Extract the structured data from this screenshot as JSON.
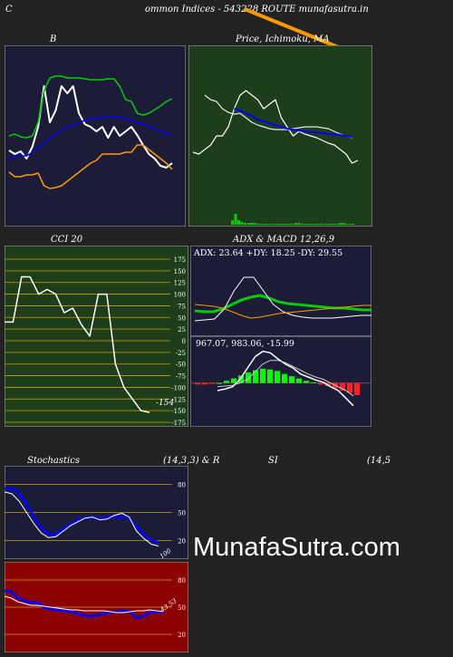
{
  "header": {
    "left": "C",
    "title": "ommon  Indices - 543228  ROUTE munafasutra.in",
    "right": ""
  },
  "panels": {
    "bollinger": {
      "label": "B"
    },
    "price": {
      "label": "Price,  Ichimoku,  MA"
    },
    "cci": {
      "label": "CCI 20",
      "last": "-154"
    },
    "adx": {
      "label": "ADX  & MACD 12,26,9",
      "values": "ADX: 23.64  +DY: 18.25 -DY: 29.55"
    },
    "macd": {
      "values": "967.07,  983.06,  -15.99"
    },
    "stoch": {
      "label": "Stochastics",
      "params": "(14,3,3) & R",
      "last": "100"
    },
    "rsi": {
      "label": "SI",
      "params": "(14,5",
      "last": "43.53"
    }
  },
  "watermark": "MunafaSutra.com",
  "colors": {
    "page_bg": "#222222",
    "navy_panel": "#1c1c38",
    "green_panel": "#1e3d1a",
    "red_panel": "#8b0000",
    "orange": "#ff9900",
    "blue": "#0000ff",
    "green_line": "#00cc00",
    "white": "#ffffff"
  },
  "chart_data": [
    {
      "type": "line",
      "name": "bollinger",
      "series": [
        {
          "color": "#ffffff",
          "values": [
            166,
            170,
            167,
            175,
            162,
            140,
            95,
            135,
            122,
            95,
            103,
            95,
            125,
            137,
            140,
            145,
            140,
            152,
            140,
            150,
            145,
            140,
            149,
            160,
            170,
            175,
            183,
            185,
            180
          ]
        },
        {
          "color": "#00cc00",
          "values": [
            150,
            148,
            151,
            152,
            150,
            135,
            100,
            86,
            84,
            84,
            86,
            86,
            86,
            87,
            88,
            88,
            88,
            87,
            87,
            95,
            110,
            112,
            125,
            127,
            125,
            121,
            117,
            112,
            109
          ]
        },
        {
          "color": "#0000ff",
          "values": [
            176,
            172,
            172,
            172,
            168,
            163,
            158,
            152,
            148,
            143,
            140,
            138,
            135,
            133,
            131,
            130,
            130,
            129,
            129,
            129,
            130,
            133,
            135,
            137,
            140,
            142,
            145,
            147,
            149
          ]
        },
        {
          "color": "#ff9900",
          "values": [
            190,
            195,
            195,
            193,
            193,
            191,
            205,
            208,
            207,
            205,
            200,
            195,
            190,
            185,
            180,
            177,
            170,
            170,
            170,
            170,
            168,
            168,
            160,
            160,
            165,
            170,
            175,
            180,
            187
          ]
        }
      ],
      "ylim": [
        250,
        50
      ]
    },
    {
      "type": "line",
      "name": "price",
      "series": [
        {
          "color": "#ffffff",
          "values": [
            168,
            170,
            165,
            160,
            150,
            150,
            140,
            120,
            105,
            100,
            105,
            110,
            120,
            115,
            110,
            130,
            140,
            150,
            145,
            148,
            150,
            152,
            155,
            158,
            160,
            165,
            170,
            180,
            177
          ]
        },
        {
          "color": "#e6e6e6",
          "values": [
            105,
            110,
            112,
            120,
            124,
            126,
            125,
            130,
            135,
            138,
            140,
            142,
            143,
            143,
            143,
            142,
            141,
            140,
            140,
            140,
            141,
            142,
            145,
            148,
            150,
            152
          ]
        },
        {
          "color": "#0000ff",
          "values": [
            120,
            122,
            125,
            128,
            132,
            134,
            136,
            138,
            140,
            142,
            143,
            144,
            145,
            146,
            146,
            147,
            148,
            148,
            149,
            150,
            151
          ]
        }
      ],
      "volume": [
        0,
        0,
        0,
        0,
        0,
        0,
        0,
        0,
        0,
        0,
        0,
        0,
        5,
        12,
        5,
        3,
        2,
        2,
        2,
        2,
        1,
        1,
        1,
        1,
        1,
        1,
        1,
        1,
        1,
        1,
        1,
        1,
        2,
        2,
        1,
        1,
        1,
        1,
        1,
        1,
        1,
        1,
        1,
        1,
        1,
        1,
        2,
        2,
        1,
        1,
        1
      ],
      "ylim": [
        250,
        50
      ]
    },
    {
      "type": "line",
      "name": "cci",
      "values": [
        40,
        40,
        137,
        137,
        100,
        110,
        100,
        60,
        70,
        35,
        10,
        100,
        100,
        -50,
        -100,
        -125,
        -150,
        -154
      ],
      "ylim": [
        -175,
        175
      ],
      "ticks": [
        175,
        150,
        125,
        100,
        75,
        50,
        25,
        0,
        -25,
        -50,
        -75,
        -100,
        -125,
        -150,
        -175
      ]
    },
    {
      "type": "line",
      "name": "adx",
      "series": [
        {
          "label": "ADX",
          "color": "#00cc00",
          "values": [
            23,
            22,
            22,
            25,
            30,
            35,
            38,
            40,
            37,
            33,
            31,
            30,
            29,
            28,
            27,
            26,
            26,
            25,
            24,
            24
          ]
        },
        {
          "label": "+DY",
          "color": "#ffffff",
          "values": [
            12,
            13,
            14,
            25,
            45,
            60,
            60,
            45,
            30,
            22,
            18,
            16,
            15,
            15,
            15,
            16,
            17,
            18,
            18
          ]
        },
        {
          "label": "-DY",
          "color": "#ff9900",
          "values": [
            30,
            29,
            28,
            26,
            22,
            18,
            15,
            16,
            18,
            20,
            21,
            22,
            23,
            24,
            25,
            26,
            27,
            28,
            29,
            29
          ]
        }
      ],
      "ylim": [
        0,
        80
      ]
    },
    {
      "type": "bar",
      "name": "macd",
      "histogram": [
        -2,
        -2,
        -1,
        0,
        3,
        6,
        10,
        14,
        17,
        19,
        18,
        16,
        12,
        9,
        6,
        3,
        1,
        -2,
        -4,
        -7,
        -10,
        -13,
        -16
      ],
      "macd": [
        -10,
        -8,
        -5,
        5,
        20,
        35,
        42,
        40,
        32,
        25,
        20,
        12,
        8,
        4,
        1,
        -5,
        -10,
        -20,
        -30
      ],
      "signal": [
        -5,
        -4,
        -3,
        0,
        5,
        15,
        25,
        30,
        30,
        27,
        22,
        17,
        12,
        8,
        5,
        0,
        -5,
        -10,
        -17
      ],
      "ylim": [
        -40,
        50
      ]
    },
    {
      "type": "line",
      "name": "stochastics",
      "series": [
        {
          "color": "#0000ff",
          "values": [
            75,
            76,
            72,
            62,
            50,
            38,
            30,
            26,
            28,
            34,
            38,
            42,
            44,
            45,
            43,
            44,
            46,
            44,
            47,
            40,
            33,
            25,
            20,
            18
          ]
        },
        {
          "color": "#ffffff",
          "values": [
            72,
            70,
            62,
            50,
            38,
            28,
            23,
            24,
            30,
            36,
            40,
            44,
            45,
            42,
            43,
            47,
            49,
            45,
            30,
            22,
            16,
            14
          ]
        }
      ],
      "ylim": [
        0,
        100
      ],
      "ticks": [
        80,
        50,
        20
      ]
    },
    {
      "type": "line",
      "name": "rsi",
      "series": [
        {
          "color": "#0000ff",
          "values": [
            68,
            67,
            60,
            57,
            55,
            55,
            50,
            48,
            47,
            46,
            45,
            43,
            41,
            40,
            41,
            43,
            44,
            45,
            46,
            45,
            38,
            40,
            44,
            45,
            44
          ]
        },
        {
          "color": "#ffffff",
          "values": [
            62,
            60,
            56,
            54,
            52,
            52,
            51,
            50,
            49,
            48,
            47,
            47,
            46,
            46,
            46,
            46,
            45,
            44,
            44,
            45,
            46,
            46,
            47,
            46,
            45
          ]
        }
      ],
      "ylim": [
        0,
        100
      ],
      "ticks": [
        80,
        50,
        20
      ]
    }
  ]
}
